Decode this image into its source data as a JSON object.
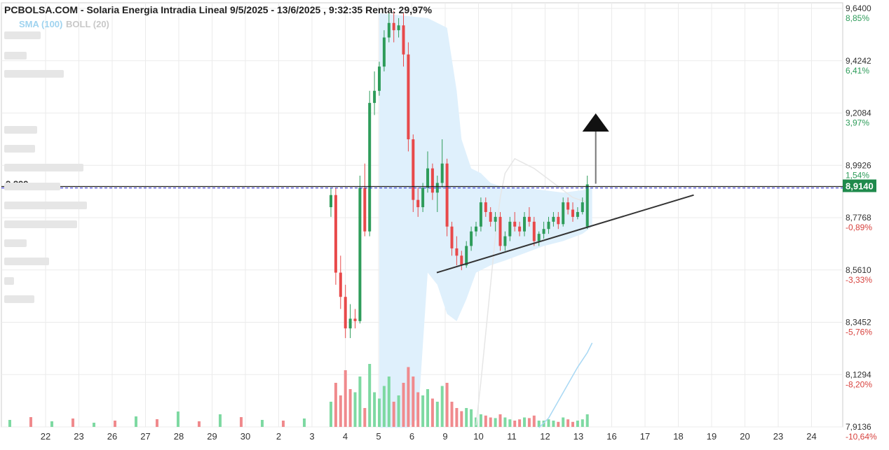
{
  "header": {
    "title": "PCBOLSA.COM - Solaria Energia Intradia Lineal 9/5/2025 - 13/6/2025 , 9:32:35 Renta: 29,97%",
    "legend_sma": "SMA (100)",
    "legend_boll": "BOLL (20)"
  },
  "colors": {
    "up": "#2e9c5a",
    "down": "#e8494a",
    "volume_up": "#7ed9a2",
    "volume_down": "#f08a8d",
    "bollinger_fill": "#dff0fc",
    "sma_line": "#a8d8f4",
    "ref_line": "#2b2bd9",
    "last_label_bg": "#1f8a4c"
  },
  "chart_data": {
    "type": "candlestick",
    "y_axis": {
      "ticks": [
        "9,6400",
        "9,4242",
        "9,2084",
        "8,9926",
        "8,7768",
        "8,5610",
        "8,3452",
        "8,1294",
        "7,9136"
      ],
      "percent_labels": [
        "8,85%",
        "6,41%",
        "3,97%",
        "1,54%",
        "-0,89%",
        "-3,33%",
        "-5,76%",
        "-8,20%",
        "-10,64%"
      ],
      "range": [
        7.9136,
        9.64
      ]
    },
    "x_axis": {
      "ticks": [
        "22",
        "23",
        "26",
        "27",
        "28",
        "29",
        "30",
        "2",
        "3",
        "4",
        "5",
        "6",
        "9",
        "10",
        "11",
        "12",
        "13",
        "16",
        "17",
        "18",
        "19",
        "20",
        "23",
        "24"
      ]
    },
    "reference_line": {
      "label": "8,899",
      "value": 8.899
    },
    "last_price": {
      "label": "8,9140",
      "value": 8.914
    },
    "indicators": [
      "SMA (100)",
      "BOLL (20)"
    ],
    "trendline_start": {
      "session": "9",
      "value": 8.55
    },
    "trendline_end": {
      "session": "18",
      "value": 8.87
    },
    "arrow": "up",
    "candles": [
      {
        "o": 8.82,
        "h": 8.9,
        "l": 8.78,
        "c": 8.87
      },
      {
        "o": 8.87,
        "h": 8.9,
        "l": 8.5,
        "c": 8.55
      },
      {
        "o": 8.55,
        "h": 8.62,
        "l": 8.4,
        "c": 8.45
      },
      {
        "o": 8.45,
        "h": 8.5,
        "l": 8.28,
        "c": 8.32
      },
      {
        "o": 8.32,
        "h": 8.42,
        "l": 8.28,
        "c": 8.36
      },
      {
        "o": 8.36,
        "h": 8.4,
        "l": 8.32,
        "c": 8.35
      },
      {
        "o": 8.35,
        "h": 8.95,
        "l": 8.34,
        "c": 8.9
      },
      {
        "o": 8.9,
        "h": 9.0,
        "l": 8.7,
        "c": 8.72
      },
      {
        "o": 8.72,
        "h": 9.3,
        "l": 8.7,
        "c": 9.25
      },
      {
        "o": 9.25,
        "h": 9.38,
        "l": 9.2,
        "c": 9.3
      },
      {
        "o": 9.3,
        "h": 9.42,
        "l": 9.28,
        "c": 9.4
      },
      {
        "o": 9.4,
        "h": 9.55,
        "l": 9.38,
        "c": 9.52
      },
      {
        "o": 9.52,
        "h": 9.62,
        "l": 9.5,
        "c": 9.58
      },
      {
        "o": 9.58,
        "h": 9.63,
        "l": 9.5,
        "c": 9.55
      },
      {
        "o": 9.55,
        "h": 9.6,
        "l": 9.52,
        "c": 9.57
      },
      {
        "o": 9.57,
        "h": 9.62,
        "l": 9.4,
        "c": 9.45
      },
      {
        "o": 9.45,
        "h": 9.5,
        "l": 9.05,
        "c": 9.1
      },
      {
        "o": 9.1,
        "h": 9.12,
        "l": 8.8,
        "c": 8.85
      },
      {
        "o": 8.85,
        "h": 8.9,
        "l": 8.78,
        "c": 8.82
      },
      {
        "o": 8.82,
        "h": 8.92,
        "l": 8.8,
        "c": 8.9
      },
      {
        "o": 8.9,
        "h": 9.05,
        "l": 8.88,
        "c": 8.98
      },
      {
        "o": 8.98,
        "h": 9.0,
        "l": 8.85,
        "c": 8.88
      },
      {
        "o": 8.88,
        "h": 8.95,
        "l": 8.8,
        "c": 8.92
      },
      {
        "o": 8.92,
        "h": 9.1,
        "l": 8.9,
        "c": 9.0
      },
      {
        "o": 9.0,
        "h": 9.02,
        "l": 8.7,
        "c": 8.74
      },
      {
        "o": 8.74,
        "h": 8.76,
        "l": 8.62,
        "c": 8.65
      },
      {
        "o": 8.65,
        "h": 8.7,
        "l": 8.58,
        "c": 8.62
      },
      {
        "o": 8.62,
        "h": 8.64,
        "l": 8.56,
        "c": 8.58
      },
      {
        "o": 8.58,
        "h": 8.68,
        "l": 8.57,
        "c": 8.66
      },
      {
        "o": 8.66,
        "h": 8.74,
        "l": 8.64,
        "c": 8.72
      },
      {
        "o": 8.72,
        "h": 8.76,
        "l": 8.7,
        "c": 8.74
      },
      {
        "o": 8.74,
        "h": 8.86,
        "l": 8.72,
        "c": 8.84
      },
      {
        "o": 8.84,
        "h": 8.86,
        "l": 8.78,
        "c": 8.8
      },
      {
        "o": 8.8,
        "h": 8.82,
        "l": 8.74,
        "c": 8.76
      },
      {
        "o": 8.76,
        "h": 8.8,
        "l": 8.72,
        "c": 8.78
      },
      {
        "o": 8.78,
        "h": 8.8,
        "l": 8.64,
        "c": 8.66
      },
      {
        "o": 8.66,
        "h": 8.72,
        "l": 8.64,
        "c": 8.7
      },
      {
        "o": 8.7,
        "h": 8.78,
        "l": 8.68,
        "c": 8.76
      },
      {
        "o": 8.76,
        "h": 8.8,
        "l": 8.72,
        "c": 8.74
      },
      {
        "o": 8.74,
        "h": 8.76,
        "l": 8.7,
        "c": 8.72
      },
      {
        "o": 8.72,
        "h": 8.8,
        "l": 8.7,
        "c": 8.78
      },
      {
        "o": 8.78,
        "h": 8.82,
        "l": 8.74,
        "c": 8.76
      },
      {
        "o": 8.76,
        "h": 8.78,
        "l": 8.66,
        "c": 8.68
      },
      {
        "o": 8.68,
        "h": 8.72,
        "l": 8.66,
        "c": 8.71
      },
      {
        "o": 8.71,
        "h": 8.76,
        "l": 8.69,
        "c": 8.73
      },
      {
        "o": 8.73,
        "h": 8.78,
        "l": 8.71,
        "c": 8.76
      },
      {
        "o": 8.76,
        "h": 8.8,
        "l": 8.74,
        "c": 8.78
      },
      {
        "o": 8.78,
        "h": 8.8,
        "l": 8.73,
        "c": 8.75
      },
      {
        "o": 8.75,
        "h": 8.86,
        "l": 8.74,
        "c": 8.84
      },
      {
        "o": 8.84,
        "h": 8.86,
        "l": 8.79,
        "c": 8.81
      },
      {
        "o": 8.81,
        "h": 8.84,
        "l": 8.76,
        "c": 8.78
      },
      {
        "o": 8.78,
        "h": 8.82,
        "l": 8.77,
        "c": 8.8
      },
      {
        "o": 8.8,
        "h": 8.86,
        "l": 8.79,
        "c": 8.84
      },
      {
        "o": 8.74,
        "h": 8.95,
        "l": 8.73,
        "c": 8.914
      }
    ],
    "sma_100": [
      [
        30,
        7.92
      ],
      [
        31,
        8.1
      ],
      [
        32,
        8.3
      ],
      [
        33,
        8.5
      ],
      [
        34,
        8.7
      ],
      [
        35,
        8.86
      ],
      [
        36,
        8.96
      ],
      [
        38,
        9.02
      ],
      [
        40,
        9.0
      ],
      [
        42,
        8.98
      ],
      [
        44,
        8.95
      ],
      [
        46,
        8.92
      ],
      [
        48,
        8.89
      ],
      [
        50,
        8.86
      ],
      [
        53,
        8.84
      ]
    ],
    "sma_lower": [
      [
        43,
        7.91
      ],
      [
        45,
        7.95
      ],
      [
        47,
        8.02
      ],
      [
        49,
        8.09
      ],
      [
        51,
        8.16
      ],
      [
        53,
        8.22
      ],
      [
        54,
        8.26
      ]
    ],
    "boll_upper": [
      [
        10,
        9.62
      ],
      [
        20,
        9.6
      ],
      [
        24,
        9.56
      ],
      [
        26,
        9.3
      ],
      [
        27,
        9.1
      ],
      [
        29,
        8.98
      ],
      [
        31,
        8.96
      ],
      [
        33,
        8.92
      ],
      [
        36,
        8.9
      ],
      [
        40,
        8.9
      ],
      [
        44,
        8.89
      ],
      [
        48,
        8.88
      ],
      [
        52,
        8.89
      ],
      [
        54,
        8.9
      ]
    ],
    "boll_lower": [
      [
        54,
        8.74
      ],
      [
        52,
        8.71
      ],
      [
        48,
        8.68
      ],
      [
        44,
        8.66
      ],
      [
        40,
        8.63
      ],
      [
        36,
        8.6
      ],
      [
        33,
        8.58
      ],
      [
        30,
        8.55
      ],
      [
        28,
        8.44
      ],
      [
        26,
        8.35
      ],
      [
        24,
        8.38
      ],
      [
        22,
        8.5
      ],
      [
        20,
        8.55
      ],
      [
        18,
        7.95
      ],
      [
        16,
        7.91
      ],
      [
        10,
        7.91
      ]
    ],
    "volume": [
      {
        "v": 40,
        "up": true
      },
      {
        "v": 70,
        "up": false
      },
      {
        "v": 50,
        "up": false
      },
      {
        "v": 90,
        "up": false
      },
      {
        "v": 60,
        "up": false
      },
      {
        "v": 55,
        "up": true
      },
      {
        "v": 80,
        "up": true
      },
      {
        "v": 30,
        "up": false
      },
      {
        "v": 100,
        "up": true
      },
      {
        "v": 55,
        "up": true
      },
      {
        "v": 45,
        "up": true
      },
      {
        "v": 65,
        "up": true
      },
      {
        "v": 80,
        "up": true
      },
      {
        "v": 40,
        "up": false
      },
      {
        "v": 50,
        "up": true
      },
      {
        "v": 70,
        "up": false
      },
      {
        "v": 95,
        "up": false
      },
      {
        "v": 80,
        "up": false
      },
      {
        "v": 55,
        "up": false
      },
      {
        "v": 50,
        "up": true
      },
      {
        "v": 60,
        "up": true
      },
      {
        "v": 45,
        "up": false
      },
      {
        "v": 40,
        "up": true
      },
      {
        "v": 65,
        "up": true
      },
      {
        "v": 70,
        "up": false
      },
      {
        "v": 40,
        "up": false
      },
      {
        "v": 30,
        "up": false
      },
      {
        "v": 25,
        "up": false
      },
      {
        "v": 30,
        "up": true
      },
      {
        "v": 28,
        "up": true
      },
      {
        "v": 15,
        "up": true
      },
      {
        "v": 20,
        "up": true
      },
      {
        "v": 18,
        "up": false
      },
      {
        "v": 15,
        "up": false
      },
      {
        "v": 14,
        "up": true
      },
      {
        "v": 20,
        "up": false
      },
      {
        "v": 15,
        "up": true
      },
      {
        "v": 12,
        "up": true
      },
      {
        "v": 10,
        "up": false
      },
      {
        "v": 12,
        "up": false
      },
      {
        "v": 15,
        "up": true
      },
      {
        "v": 14,
        "up": false
      },
      {
        "v": 18,
        "up": false
      },
      {
        "v": 10,
        "up": true
      },
      {
        "v": 10,
        "up": true
      },
      {
        "v": 12,
        "up": true
      },
      {
        "v": 10,
        "up": true
      },
      {
        "v": 8,
        "up": false
      },
      {
        "v": 15,
        "up": true
      },
      {
        "v": 12,
        "up": false
      },
      {
        "v": 8,
        "up": false
      },
      {
        "v": 10,
        "up": true
      },
      {
        "v": 12,
        "up": true
      },
      {
        "v": 20,
        "up": true
      }
    ]
  }
}
